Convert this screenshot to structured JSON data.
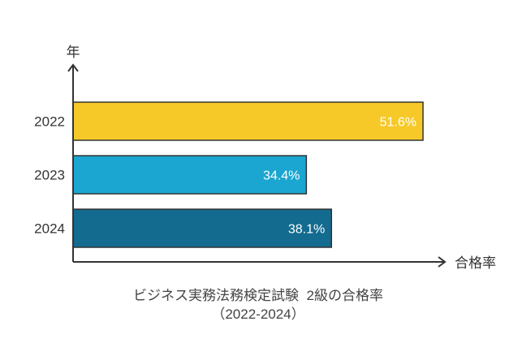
{
  "chart_data": {
    "type": "bar",
    "orientation": "horizontal",
    "title": "ビジネス実務法務検定試験  2級の合格率",
    "subtitle": "（2022-2024）",
    "xlabel": "合格率",
    "ylabel": "年",
    "categories": [
      "2022",
      "2023",
      "2024"
    ],
    "values": [
      51.6,
      34.4,
      38.1
    ],
    "data_labels": [
      "51.6%",
      "34.4%",
      "38.1%"
    ],
    "colors": [
      "#F6C928",
      "#1AA6D0",
      "#136B8F"
    ],
    "xlim": [
      0,
      54
    ],
    "grid": false,
    "legend": "none"
  }
}
